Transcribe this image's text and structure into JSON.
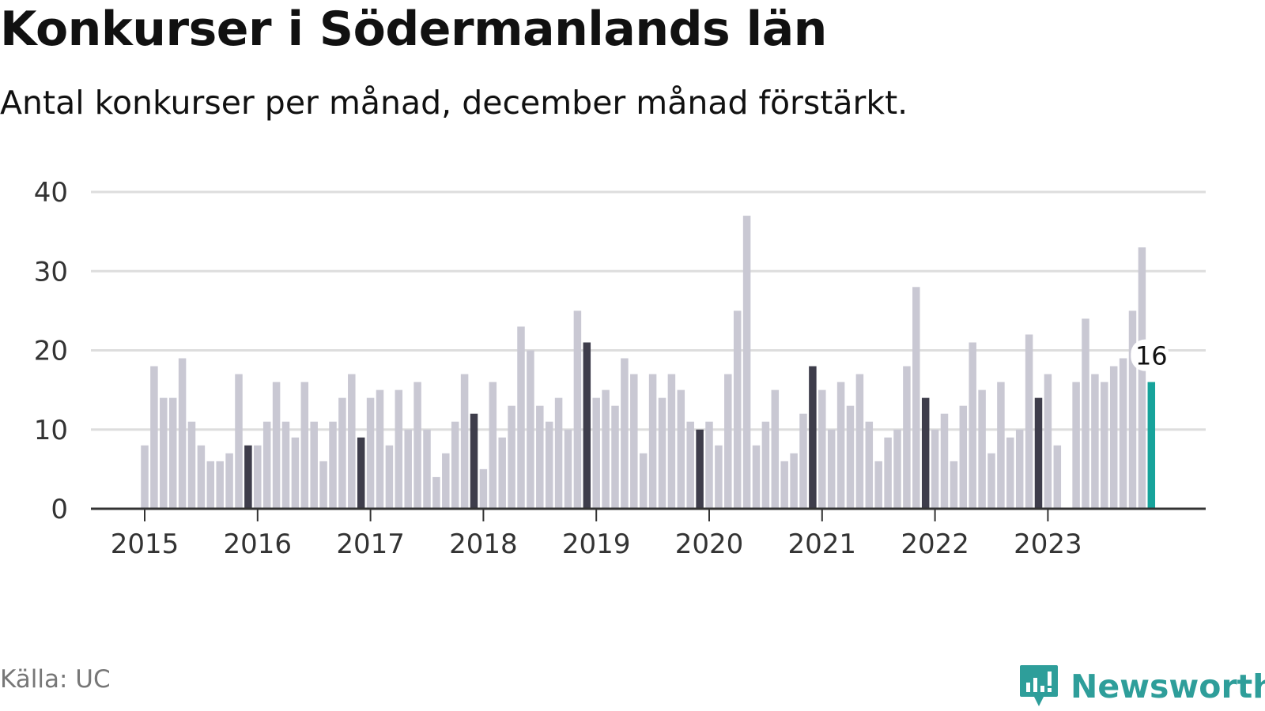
{
  "header": {
    "title": "Konkurser i Södermanlands län",
    "subtitle": "Antal konkurser per månad, december månad förstärkt."
  },
  "footer": {
    "source": "Källa: UC",
    "brand": "Newsworthy",
    "brand_icon": "bar-chart-logo-icon"
  },
  "colors": {
    "bar": "#c9c8d3",
    "december": "#3e3d4b",
    "latest": "#17a39b",
    "grid": "#dddddd",
    "axis": "#333333",
    "brand": "#2e9e9a"
  },
  "chart_data": {
    "type": "bar",
    "x_start": "2015-01",
    "frequency": "monthly",
    "ylim": [
      0,
      40
    ],
    "yticks": [
      0,
      10,
      20,
      30,
      40
    ],
    "xticks": [
      "2015",
      "2016",
      "2017",
      "2018",
      "2019",
      "2020",
      "2021",
      "2022",
      "2023"
    ],
    "highlight": "december",
    "grid": true,
    "values": [
      8,
      18,
      14,
      14,
      19,
      11,
      8,
      6,
      6,
      7,
      17,
      8,
      8,
      11,
      16,
      11,
      9,
      16,
      11,
      6,
      11,
      14,
      17,
      9,
      14,
      15,
      8,
      15,
      10,
      16,
      10,
      4,
      7,
      11,
      17,
      12,
      5,
      16,
      9,
      13,
      23,
      20,
      13,
      11,
      14,
      10,
      25,
      21,
      14,
      15,
      13,
      19,
      17,
      7,
      17,
      14,
      17,
      15,
      11,
      10,
      11,
      8,
      17,
      25,
      37,
      8,
      11,
      15,
      6,
      7,
      12,
      18,
      15,
      10,
      16,
      13,
      17,
      11,
      6,
      9,
      10,
      18,
      28,
      14,
      10,
      12,
      6,
      13,
      21,
      15,
      7,
      16,
      9,
      10,
      22,
      14,
      17,
      8,
      0,
      16,
      24,
      17,
      16,
      18,
      19,
      25,
      33,
      16
    ],
    "latest_label": "16"
  }
}
